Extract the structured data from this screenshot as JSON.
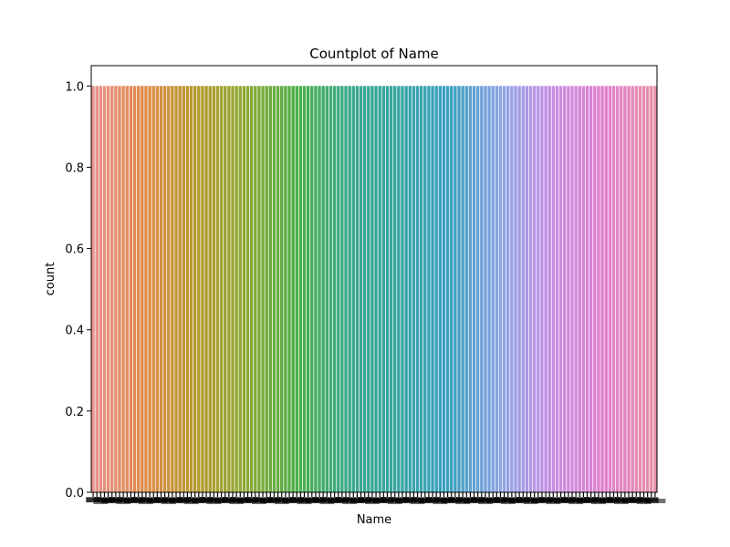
{
  "chart_data": {
    "type": "bar",
    "title": "Countplot of Name",
    "xlabel": "Name",
    "ylabel": "count",
    "ylim": [
      0,
      1.05
    ],
    "yticks": [
      "0.0",
      "0.2",
      "0.4",
      "0.6",
      "0.8",
      "1.0"
    ],
    "grid": false,
    "legend": "none",
    "bar_count": 150,
    "values": [
      1,
      1,
      1,
      1,
      1,
      1,
      1,
      1,
      1,
      1,
      1,
      1,
      1,
      1,
      1,
      1,
      1,
      1,
      1,
      1,
      1,
      1,
      1,
      1,
      1,
      1,
      1,
      1,
      1,
      1,
      1,
      1,
      1,
      1,
      1,
      1,
      1,
      1,
      1,
      1,
      1,
      1,
      1,
      1,
      1,
      1,
      1,
      1,
      1,
      1,
      1,
      1,
      1,
      1,
      1,
      1,
      1,
      1,
      1,
      1,
      1,
      1,
      1,
      1,
      1,
      1,
      1,
      1,
      1,
      1,
      1,
      1,
      1,
      1,
      1,
      1,
      1,
      1,
      1,
      1,
      1,
      1,
      1,
      1,
      1,
      1,
      1,
      1,
      1,
      1,
      1,
      1,
      1,
      1,
      1,
      1,
      1,
      1,
      1,
      1,
      1,
      1,
      1,
      1,
      1,
      1,
      1,
      1,
      1,
      1,
      1,
      1,
      1,
      1,
      1,
      1,
      1,
      1,
      1,
      1,
      1,
      1,
      1,
      1,
      1,
      1,
      1,
      1,
      1,
      1,
      1,
      1,
      1,
      1,
      1,
      1,
      1,
      1,
      1,
      1,
      1,
      1,
      1,
      1,
      1,
      1,
      1,
      1,
      1,
      1
    ],
    "palette": "husl",
    "palette_colors": [
      "#e8938c",
      "#e08a4a",
      "#b79a2e",
      "#8da936",
      "#4bae4a",
      "#3aa98a",
      "#38a5a2",
      "#3aa0c1",
      "#8fa3e6",
      "#c98ce3",
      "#e07fce",
      "#e88fa6"
    ]
  }
}
